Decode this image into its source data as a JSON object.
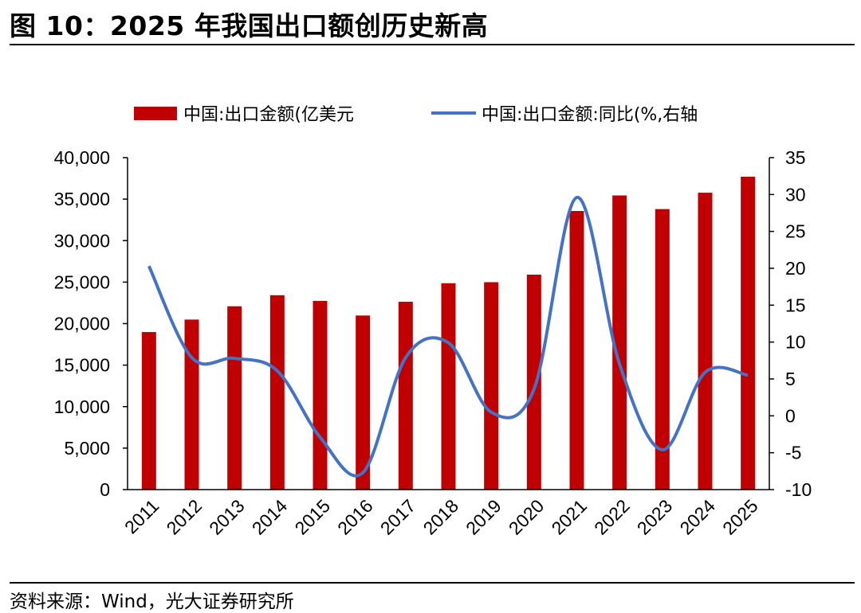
{
  "header": {
    "title": "图 10：2025 年我国出口额创历史新高"
  },
  "footer": {
    "source": "资料来源：Wind，光大证券研究所"
  },
  "colors": {
    "bar": "#c00000",
    "line": "#4472c4",
    "axis": "#000000"
  },
  "chart_data": {
    "type": "bar",
    "title": "图 10：2025 年我国出口额创历史新高",
    "categories": [
      "2011",
      "2012",
      "2013",
      "2014",
      "2015",
      "2016",
      "2017",
      "2018",
      "2019",
      "2020",
      "2021",
      "2022",
      "2023",
      "2024",
      "2025"
    ],
    "series": [
      {
        "name": "中国:出口金额(亿美元",
        "type": "bar",
        "axis": "left",
        "values": [
          18984,
          20487,
          22090,
          23423,
          22735,
          20976,
          22633,
          24867,
          24990,
          25900,
          33571,
          35444,
          33800,
          35772,
          37700
        ]
      },
      {
        "name": "中国:出口金额:同比(%,右轴",
        "type": "line",
        "axis": "right",
        "values": [
          20.3,
          7.9,
          7.8,
          6.1,
          -2.9,
          -7.7,
          7.9,
          9.9,
          0.5,
          3.6,
          29.6,
          7.0,
          -4.6,
          5.9,
          5.5
        ]
      }
    ],
    "y_left": {
      "min": 0,
      "max": 40000,
      "ticks": [
        "0",
        "5,000",
        "10,000",
        "15,000",
        "20,000",
        "25,000",
        "30,000",
        "35,000",
        "40,000"
      ]
    },
    "y_right": {
      "min": -10,
      "max": 35,
      "ticks": [
        "-10",
        "-5",
        "0",
        "5",
        "10",
        "15",
        "20",
        "25",
        "30",
        "35"
      ]
    },
    "grid": false,
    "legend_position": "top"
  }
}
